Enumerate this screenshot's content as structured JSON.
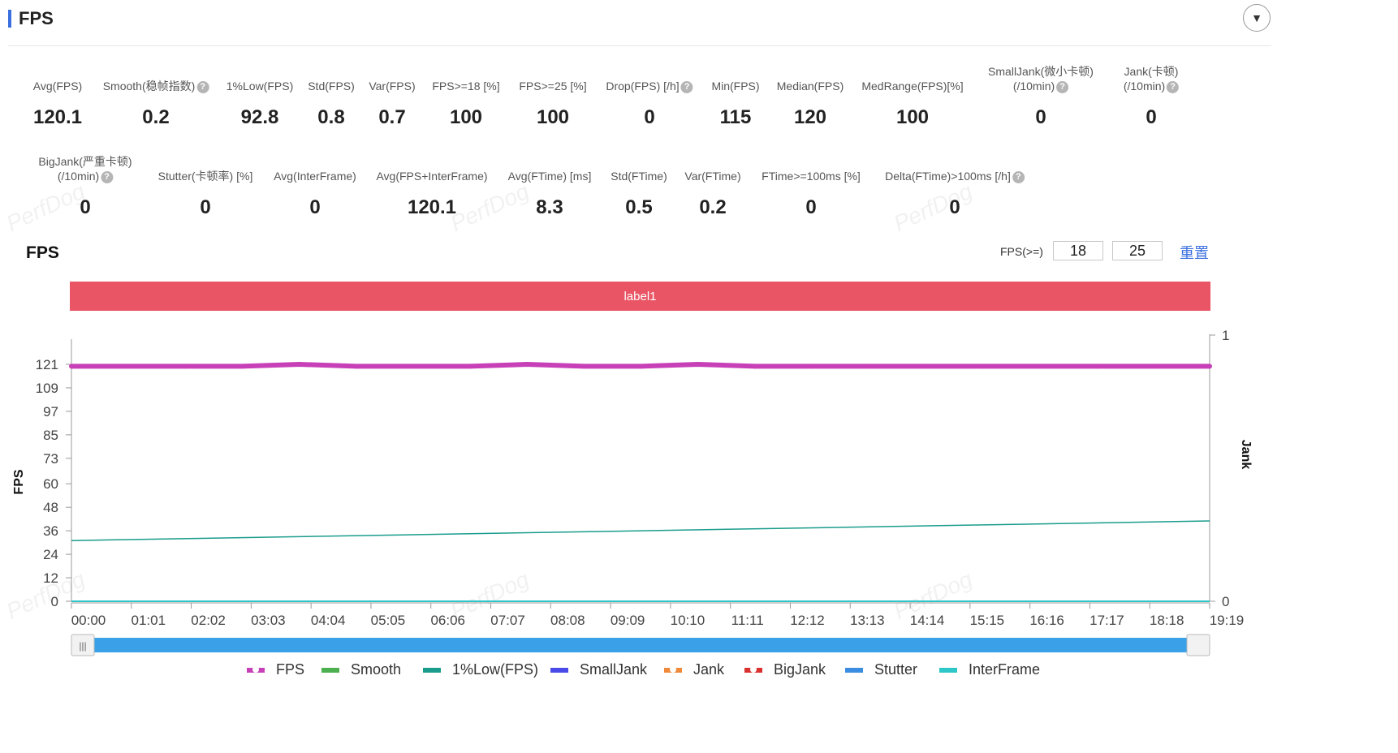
{
  "header": {
    "title": "FPS",
    "collapse_icon": "chevron-down-icon"
  },
  "metrics_row1": [
    {
      "label": "Avg(FPS)",
      "value": "120.1",
      "help": false
    },
    {
      "label": "Smooth(稳帧指数)",
      "value": "0.2",
      "help": true
    },
    {
      "label": "1%Low(FPS)",
      "value": "92.8",
      "help": false
    },
    {
      "label": "Std(FPS)",
      "value": "0.8",
      "help": false
    },
    {
      "label": "Var(FPS)",
      "value": "0.7",
      "help": false
    },
    {
      "label": "FPS>=18 [%]",
      "value": "100",
      "help": false
    },
    {
      "label": "FPS>=25 [%]",
      "value": "100",
      "help": false
    },
    {
      "label": "Drop(FPS) [/h]",
      "value": "0",
      "help": true
    },
    {
      "label": "Min(FPS)",
      "value": "115",
      "help": false
    },
    {
      "label": "Median(FPS)",
      "value": "120",
      "help": false
    },
    {
      "label": "MedRange(FPS)[%]",
      "value": "100",
      "help": false
    },
    {
      "label": "SmallJank(微小卡顿)",
      "label2": "(/10min)",
      "value": "0",
      "help": true
    },
    {
      "label": "Jank(卡顿)",
      "label2": "(/10min)",
      "value": "0",
      "help": true
    }
  ],
  "metrics_row2": [
    {
      "label": "BigJank(严重卡顿)",
      "label2": "(/10min)",
      "value": "0",
      "help": true
    },
    {
      "label": "Stutter(卡顿率) [%]",
      "value": "0",
      "help": false
    },
    {
      "label": "Avg(InterFrame)",
      "value": "0",
      "help": false
    },
    {
      "label": "Avg(FPS+InterFrame)",
      "value": "120.1",
      "help": false
    },
    {
      "label": "Avg(FTime) [ms]",
      "value": "8.3",
      "help": false
    },
    {
      "label": "Std(FTime)",
      "value": "0.5",
      "help": false
    },
    {
      "label": "Var(FTime)",
      "value": "0.2",
      "help": false
    },
    {
      "label": "FTime>=100ms [%]",
      "value": "0",
      "help": false
    },
    {
      "label": "Delta(FTime)>100ms [/h]",
      "value": "0",
      "help": true
    }
  ],
  "chart_section": {
    "title": "FPS",
    "threshold_label": "FPS(>=)",
    "threshold_1": "18",
    "threshold_2": "25",
    "reset_label": "重置",
    "label_band": "label1",
    "label_band_color": "#ea5565"
  },
  "watermark": "PerfDog",
  "chart_data": {
    "type": "line",
    "y_label": "FPS",
    "y2_label": "Jank",
    "y_ticks": [
      0,
      12,
      24,
      36,
      48,
      60,
      73,
      85,
      97,
      109,
      121
    ],
    "y_range": [
      0,
      121
    ],
    "y2_ticks": [
      0,
      1
    ],
    "y2_range": [
      0,
      1
    ],
    "x_ticks": [
      "00:00",
      "01:01",
      "02:02",
      "03:03",
      "04:04",
      "05:05",
      "06:06",
      "07:07",
      "08:08",
      "09:09",
      "10:10",
      "11:11",
      "12:12",
      "13:13",
      "14:14",
      "15:15",
      "16:16",
      "17:17",
      "18:18",
      "19:19"
    ],
    "x_range_seconds": [
      0,
      1159
    ],
    "series": [
      {
        "name": "FPS",
        "color": "#c740b8",
        "points": [
          [
            0,
            120
          ],
          [
            58,
            120
          ],
          [
            116,
            120
          ],
          [
            174,
            120
          ],
          [
            232,
            121
          ],
          [
            290,
            120
          ],
          [
            348,
            120
          ],
          [
            406,
            120
          ],
          [
            464,
            121
          ],
          [
            522,
            120
          ],
          [
            580,
            120
          ],
          [
            638,
            121
          ],
          [
            696,
            120
          ],
          [
            754,
            120
          ],
          [
            812,
            120
          ],
          [
            870,
            120
          ],
          [
            928,
            120
          ],
          [
            986,
            120
          ],
          [
            1044,
            120
          ],
          [
            1102,
            120
          ],
          [
            1159,
            120
          ]
        ]
      },
      {
        "name": "Smooth",
        "color": "#4caf50",
        "points": [
          [
            0,
            0
          ],
          [
            1159,
            0
          ]
        ]
      },
      {
        "name": "1%Low(FPS)",
        "color": "#1a9c8c",
        "points": [
          [
            0,
            31
          ],
          [
            1159,
            41
          ]
        ]
      },
      {
        "name": "SmallJank",
        "color": "#4a4ae8",
        "points": [
          [
            0,
            0
          ],
          [
            1159,
            0
          ]
        ]
      },
      {
        "name": "Jank",
        "color": "#f08a3a",
        "points": [
          [
            0,
            0
          ],
          [
            1159,
            0
          ]
        ]
      },
      {
        "name": "BigJank",
        "color": "#d93030",
        "points": [
          [
            0,
            0
          ],
          [
            1159,
            0
          ]
        ]
      },
      {
        "name": "Stutter",
        "color": "#3a8de0",
        "points": [
          [
            0,
            0
          ],
          [
            1159,
            0
          ]
        ]
      },
      {
        "name": "InterFrame",
        "color": "#2ec7c9",
        "points": [
          [
            0,
            0
          ],
          [
            1159,
            0
          ]
        ]
      }
    ]
  }
}
